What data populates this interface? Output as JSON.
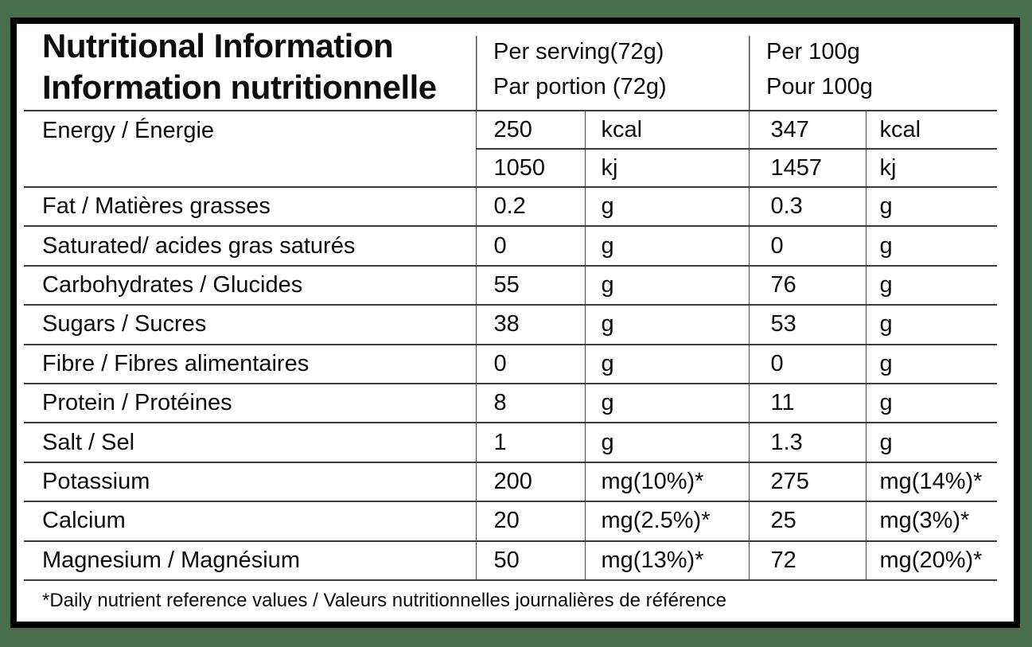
{
  "colors": {
    "page_background": "#486e4e",
    "card_background": "#ffffff",
    "card_border": "#000000",
    "grid_line": "#3a3a3a",
    "text": "#0d0d0d"
  },
  "header": {
    "title_line1": "Nutritional Information",
    "title_line2": "Information nutritionnelle",
    "col_serving_line1": "Per serving(72g)",
    "col_serving_line2": "Par portion (72g)",
    "col_100g_line1": "Per 100g",
    "col_100g_line2": "Pour 100g"
  },
  "rows": [
    {
      "label": "Energy / Énergie",
      "sub_rows": [
        {
          "serving_value": "250",
          "serving_unit": "kcal",
          "per_100g_value": "347",
          "per_100g_unit": "kcal"
        },
        {
          "serving_value": "1050",
          "serving_unit": "kj",
          "per_100g_value": "1457",
          "per_100g_unit": "kj"
        }
      ]
    },
    {
      "label": "Fat / Matières grasses",
      "serving_value": "0.2",
      "serving_unit": "g",
      "per_100g_value": "0.3",
      "per_100g_unit": "g"
    },
    {
      "label": "Saturated/ acides gras saturés",
      "serving_value": "0",
      "serving_unit": "g",
      "per_100g_value": "0",
      "per_100g_unit": "g"
    },
    {
      "label": "Carbohydrates / Glucides",
      "serving_value": "55",
      "serving_unit": "g",
      "per_100g_value": "76",
      "per_100g_unit": "g"
    },
    {
      "label": "Sugars / Sucres",
      "serving_value": "38",
      "serving_unit": "g",
      "per_100g_value": "53",
      "per_100g_unit": "g"
    },
    {
      "label": "Fibre / Fibres alimentaires",
      "serving_value": "0",
      "serving_unit": "g",
      "per_100g_value": "0",
      "per_100g_unit": "g"
    },
    {
      "label": "Protein / Protéines",
      "serving_value": "8",
      "serving_unit": "g",
      "per_100g_value": "11",
      "per_100g_unit": "g"
    },
    {
      "label": "Salt / Sel",
      "serving_value": "1",
      "serving_unit": "g",
      "per_100g_value": "1.3",
      "per_100g_unit": "g"
    },
    {
      "label": "Potassium",
      "serving_value": "200",
      "serving_unit": "mg(10%)*",
      "per_100g_value": "275",
      "per_100g_unit": "mg(14%)*"
    },
    {
      "label": "Calcium",
      "serving_value": "20",
      "serving_unit": "mg(2.5%)*",
      "per_100g_value": "25",
      "per_100g_unit": "mg(3%)*"
    },
    {
      "label": "Magnesium / Magnésium",
      "serving_value": "50",
      "serving_unit": "mg(13%)*",
      "per_100g_value": "72",
      "per_100g_unit": "mg(20%)*"
    }
  ],
  "footnote": "*Daily nutrient reference values / Valeurs nutritionnelles journalières de référence"
}
